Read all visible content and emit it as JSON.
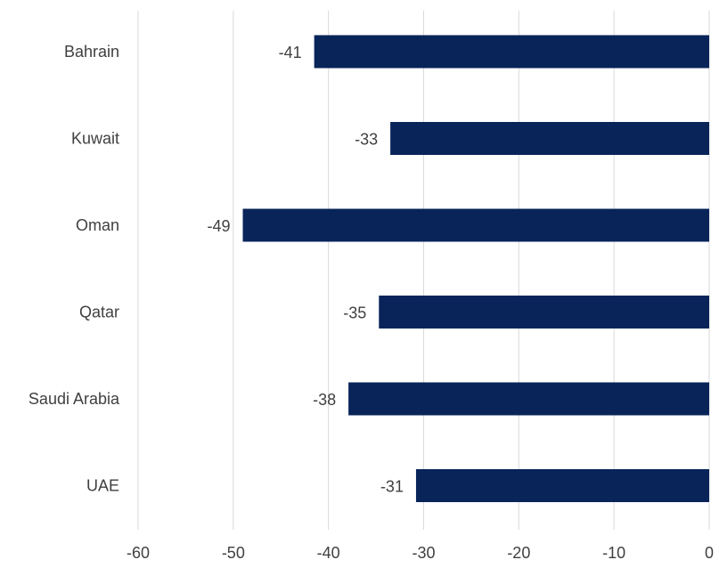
{
  "chart_data": {
    "type": "bar",
    "orientation": "horizontal",
    "categories": [
      "Bahrain",
      "Kuwait",
      "Oman",
      "Qatar",
      "Saudi Arabia",
      "UAE"
    ],
    "values": [
      -41.5,
      -33.5,
      -49,
      -34.7,
      -37.9,
      -30.8
    ],
    "data_labels": [
      "-41",
      "-33",
      "-49",
      "-35",
      "-38",
      "-31"
    ],
    "xlim": [
      -60,
      0
    ],
    "x_ticks": [
      -60,
      -50,
      -40,
      -30,
      -20,
      -10,
      0
    ],
    "x_tick_labels": [
      "-60",
      "-50",
      "-40",
      "-30",
      "-20",
      "-10",
      "0"
    ],
    "grid": true,
    "legend": "none",
    "title": "",
    "xlabel": "",
    "ylabel": "",
    "colors": {
      "bar": "#082459",
      "grid": "#d9d9d9",
      "text": "#404040"
    }
  }
}
